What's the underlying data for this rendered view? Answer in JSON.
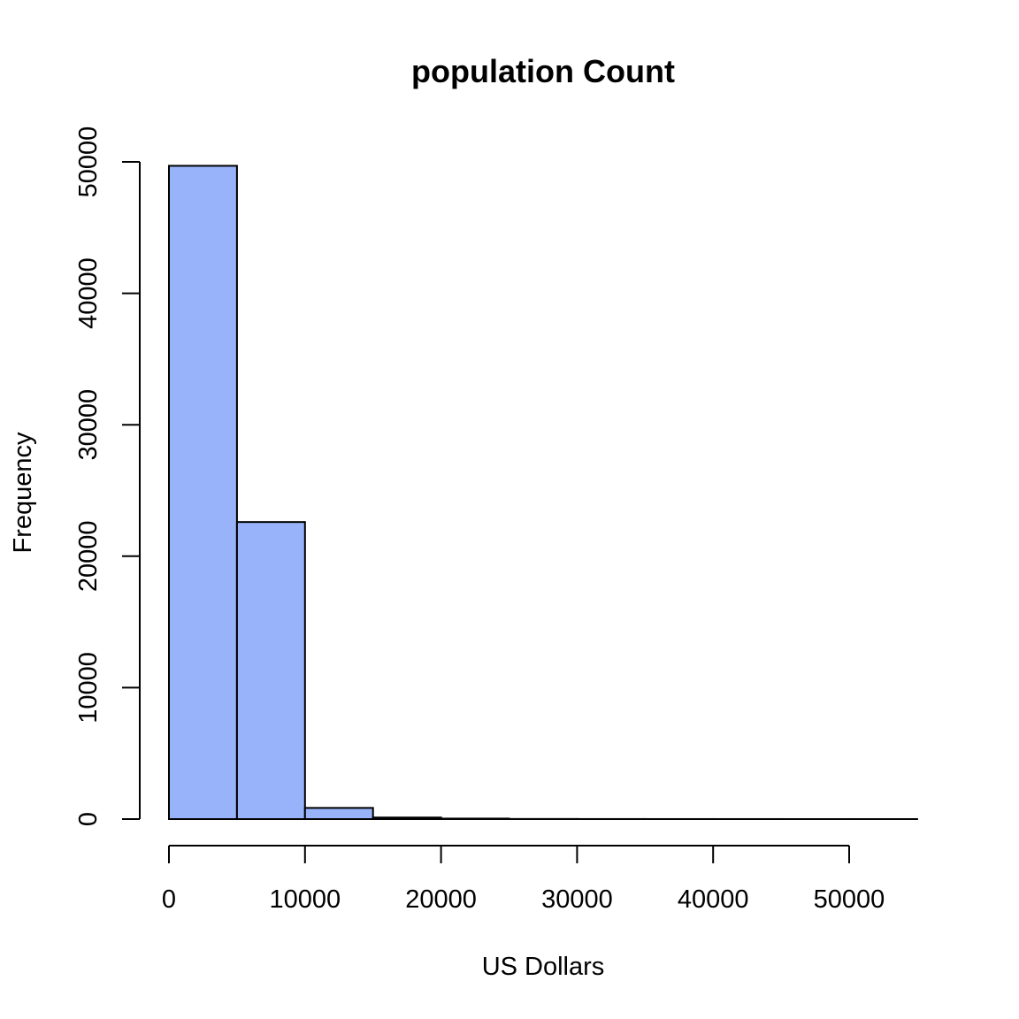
{
  "chart_data": {
    "type": "bar",
    "title": "population Count",
    "xlabel": "US Dollars",
    "ylabel": "Frequency",
    "bins": [
      {
        "start": 0,
        "end": 5000,
        "count": 49700
      },
      {
        "start": 5000,
        "end": 10000,
        "count": 22600
      },
      {
        "start": 10000,
        "end": 15000,
        "count": 850
      },
      {
        "start": 15000,
        "end": 20000,
        "count": 120
      },
      {
        "start": 20000,
        "end": 25000,
        "count": 40
      },
      {
        "start": 25000,
        "end": 30000,
        "count": 10
      },
      {
        "start": 30000,
        "end": 35000,
        "count": 5
      },
      {
        "start": 35000,
        "end": 40000,
        "count": 3
      },
      {
        "start": 40000,
        "end": 45000,
        "count": 2
      },
      {
        "start": 45000,
        "end": 50000,
        "count": 1
      },
      {
        "start": 50000,
        "end": 55000,
        "count": 1
      }
    ],
    "xticks": [
      0,
      10000,
      20000,
      30000,
      40000,
      50000
    ],
    "yticks": [
      0,
      10000,
      20000,
      30000,
      40000,
      50000
    ],
    "xlim": [
      0,
      55000
    ],
    "ylim": [
      0,
      50000
    ],
    "bar_color": "#99b3fa",
    "grid": false,
    "legend": "none"
  }
}
